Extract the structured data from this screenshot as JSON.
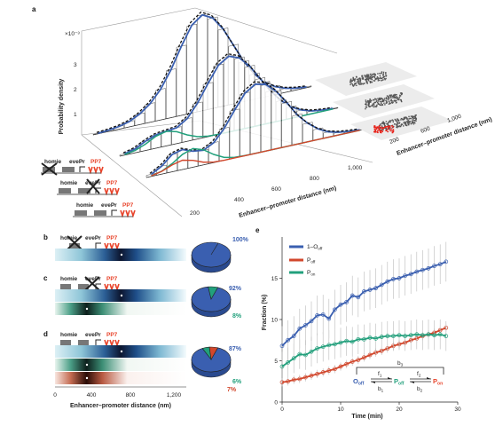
{
  "panel_a": {
    "label": "a",
    "y_exponent": "×10⁻³",
    "ylabel": "Probability density",
    "xlabel": "Enhancer–promoter distance (nm)",
    "xticks": [
      "200",
      "400",
      "600",
      "800",
      "1,000"
    ],
    "yticks": [
      "1",
      "2",
      "3"
    ],
    "inset_label": "Enhancer–promoter distance (nm)",
    "inset_ticks": [
      "200",
      "600",
      "1,000"
    ],
    "constructs": [
      {
        "homie": "homie",
        "evePr": "evePr",
        "reporter": "PP7",
        "crossed_homie": true,
        "crossed_pr": false
      },
      {
        "homie": "homie",
        "evePr": "evePr",
        "reporter": "PP7",
        "crossed_homie": false,
        "crossed_pr": true
      },
      {
        "homie": "homie",
        "evePr": "evePr",
        "reporter": "PP7",
        "crossed_homie": false,
        "crossed_pr": false
      }
    ]
  },
  "panels_bcd": {
    "labels": [
      "b",
      "c",
      "d"
    ],
    "construct_text": {
      "homie": "homie",
      "evePr": "evePr",
      "reporter": "PP7"
    },
    "xlabel": "Enhancer–promoter distance (nm)",
    "xticks": [
      "0",
      "400",
      "800",
      "1,200"
    ],
    "pies": [
      {
        "labels": [
          "100%"
        ],
        "values": [
          100
        ],
        "colors": [
          "#3a5fb0"
        ]
      },
      {
        "labels": [
          "92%",
          "8%"
        ],
        "values": [
          92,
          8
        ],
        "colors": [
          "#3a5fb0",
          "#22a07c"
        ]
      },
      {
        "labels": [
          "87%",
          "6%",
          "7%"
        ],
        "values": [
          87,
          6,
          7
        ],
        "colors": [
          "#3a5fb0",
          "#22a07c",
          "#d2472c"
        ]
      }
    ]
  },
  "colors": {
    "blue": "#3a5fb0",
    "green": "#22a07c",
    "red": "#d2472c",
    "accent_red": "#e8432a"
  },
  "panel_e": {
    "label": "e",
    "ylabel": "Fraction (%)",
    "xlabel": "Time (min)",
    "legend": {
      "s1": "1–O",
      "s1_sub": "off",
      "s2": "P",
      "s2_sub": "off",
      "s3": "P",
      "s3_sub": "on"
    },
    "model": {
      "O": "O",
      "O_sub": "off",
      "P1": "P",
      "P1_sub": "off",
      "P2": "P",
      "P2_sub": "on",
      "f1": "f",
      "f1_sub": "1",
      "b1": "b",
      "b1_sub": "1",
      "f2": "f",
      "f2_sub": "2",
      "b2": "b",
      "b2_sub": "2",
      "b3": "b",
      "b3_sub": "3"
    }
  },
  "chart_data": [
    {
      "type": "line",
      "title": "",
      "xlabel": "Enhancer–promoter distance (nm)",
      "ylabel": "Probability density",
      "y_scale_note": "×10⁻³",
      "xlim": [
        100,
        1100
      ],
      "ylim": [
        0,
        3.9
      ],
      "series": [
        {
          "x": [
            100,
            150,
            200,
            250,
            300,
            350,
            400,
            450,
            500,
            550,
            600,
            650,
            700,
            750,
            800,
            850,
            900,
            950,
            1000,
            1050,
            1100
          ],
          "values": [
            0.02,
            0.05,
            0.1,
            0.2,
            0.4,
            0.7,
            1.15,
            1.8,
            2.6,
            3.3,
            3.6,
            3.4,
            2.9,
            2.2,
            1.5,
            0.95,
            0.55,
            0.3,
            0.15,
            0.07,
            0.03
          ]
        },
        {
          "x": [
            100,
            150,
            200,
            250,
            300,
            350,
            400,
            450,
            500,
            550,
            600,
            650,
            700,
            750,
            800,
            850,
            900,
            950,
            1000,
            1050,
            1100
          ],
          "values": [
            0.05,
            0.15,
            0.35,
            0.5,
            0.55,
            0.6,
            0.85,
            1.35,
            2.0,
            2.6,
            2.85,
            2.7,
            2.3,
            1.75,
            1.2,
            0.75,
            0.42,
            0.22,
            0.1,
            0.05,
            0.02
          ]
        },
        {
          "x": [
            100,
            150,
            200,
            250,
            300,
            350,
            400,
            450,
            500,
            550,
            600,
            650,
            700,
            750,
            800,
            850,
            900,
            950,
            1000,
            1050,
            1100
          ],
          "values": [
            0.08,
            0.3,
            0.65,
            0.75,
            0.6,
            0.55,
            0.75,
            1.2,
            1.8,
            2.35,
            2.6,
            2.5,
            2.15,
            1.65,
            1.1,
            0.7,
            0.4,
            0.2,
            0.1,
            0.05,
            0.02
          ]
        }
      ]
    },
    {
      "type": "scatter",
      "title": "",
      "xlabel": "Time (min)",
      "ylabel": "Fraction (%)",
      "xlim": [
        0,
        30
      ],
      "ylim": [
        0,
        20
      ],
      "xticks": [
        0,
        10,
        20,
        30
      ],
      "yticks": [
        0,
        5,
        10,
        15
      ],
      "series": [
        {
          "name": "1–O off",
          "x": [
            0,
            1,
            2,
            3,
            4,
            5,
            6,
            7,
            8,
            9,
            10,
            11,
            12,
            13,
            14,
            15,
            16,
            17,
            18,
            19,
            20,
            21,
            22,
            23,
            24,
            25,
            26,
            27,
            28
          ],
          "values": [
            6.8,
            7.5,
            8.0,
            8.9,
            9.3,
            9.8,
            10.5,
            10.6,
            10.1,
            11.2,
            11.8,
            12.1,
            12.9,
            12.7,
            13.4,
            13.6,
            13.8,
            14.2,
            14.6,
            14.9,
            15.0,
            15.3,
            15.5,
            15.8,
            16.0,
            16.2,
            16.5,
            16.7,
            17.0
          ]
        },
        {
          "name": "P off",
          "x": [
            0,
            1,
            2,
            3,
            4,
            5,
            6,
            7,
            8,
            9,
            10,
            11,
            12,
            13,
            14,
            15,
            16,
            17,
            18,
            19,
            20,
            21,
            22,
            23,
            24,
            25,
            26,
            27,
            28
          ],
          "values": [
            2.4,
            2.5,
            2.7,
            2.8,
            3.0,
            3.2,
            3.4,
            3.6,
            3.8,
            4.0,
            4.3,
            4.6,
            4.9,
            5.1,
            5.4,
            5.7,
            6.0,
            6.2,
            6.5,
            6.8,
            7.0,
            7.2,
            7.5,
            7.7,
            8.0,
            8.2,
            8.4,
            8.7,
            9.0
          ]
        },
        {
          "name": "P on",
          "x": [
            0,
            1,
            2,
            3,
            4,
            5,
            6,
            7,
            8,
            9,
            10,
            11,
            12,
            13,
            14,
            15,
            16,
            17,
            18,
            19,
            20,
            21,
            22,
            23,
            24,
            25,
            26,
            27,
            28
          ],
          "values": [
            4.3,
            4.8,
            5.3,
            5.8,
            5.7,
            6.1,
            6.5,
            6.7,
            6.9,
            7.0,
            7.2,
            7.4,
            7.3,
            7.6,
            7.6,
            7.8,
            7.7,
            7.9,
            8.0,
            8.0,
            8.1,
            8.0,
            8.1,
            8.2,
            8.1,
            8.2,
            8.1,
            8.2,
            8.0
          ]
        }
      ]
    },
    {
      "type": "pie",
      "series": [
        {
          "values": [
            100
          ]
        },
        {
          "values": [
            92,
            8
          ]
        },
        {
          "values": [
            87,
            6,
            7
          ]
        }
      ]
    }
  ]
}
